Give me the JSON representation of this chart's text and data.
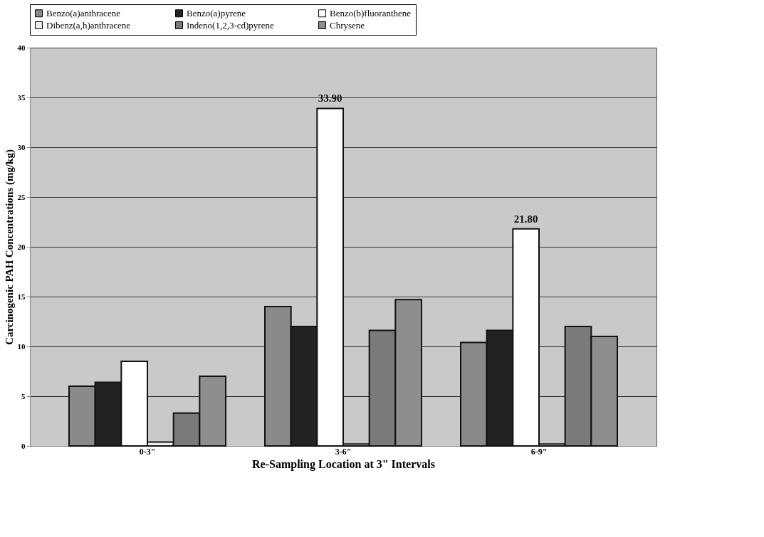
{
  "chart_data": {
    "type": "bar",
    "xlabel": "Re-Sampling Location at 3\" Intervals",
    "ylabel": "Carcinogenic PAH Concentrations (mg/kg)",
    "categories": [
      "0-3\"",
      "3-6\"",
      "6-9\""
    ],
    "series": [
      {
        "name": "Benzo(a)anthracene",
        "color": "#8a8a8a",
        "values": [
          6.0,
          14.0,
          10.4
        ]
      },
      {
        "name": "Benzo(a)pyrene",
        "color": "#232323",
        "values": [
          6.4,
          12.0,
          11.6
        ]
      },
      {
        "name": "Benzo(b)fluoranthene",
        "color": "#ffffff",
        "values": [
          8.5,
          33.9,
          21.8
        ],
        "value_labels": [
          null,
          "33.90",
          "21.80"
        ]
      },
      {
        "name": "Dibenz(a,h)anthracene",
        "color": "#ececec",
        "values": [
          0.4,
          0.2,
          0.2
        ]
      },
      {
        "name": "Indeno(1,2,3-cd)pyrene",
        "color": "#7a7a7a",
        "values": [
          3.3,
          11.6,
          12.0
        ]
      },
      {
        "name": "Chrysene",
        "color": "#8e8e8e",
        "values": [
          7.0,
          14.7,
          11.0
        ]
      }
    ],
    "ylim": [
      0,
      40
    ],
    "yticks": [
      0,
      5,
      10,
      15,
      20,
      25,
      30,
      35,
      40
    ],
    "grid": "y",
    "legend": "top"
  }
}
